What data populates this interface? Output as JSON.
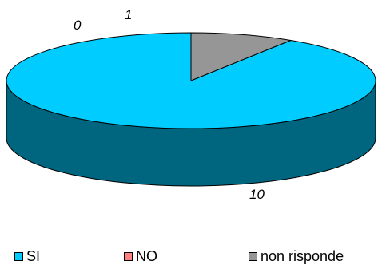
{
  "chart_data": {
    "type": "pie",
    "three_d": true,
    "categories": [
      "SI",
      "NO",
      "non risponde"
    ],
    "values": [
      10,
      0,
      1
    ],
    "data_labels": [
      "10",
      "0",
      "1"
    ],
    "title": "",
    "legend_position": "bottom",
    "colors": {
      "SI": "#00ccff",
      "SI_side": "#006680",
      "NO": "#ff8080",
      "non risponde": "#969696",
      "non risponde_side": "#4b4b4b",
      "outline": "#000000"
    }
  },
  "legend": {
    "items": [
      {
        "label": "SI",
        "color": "#00ccff"
      },
      {
        "label": "NO",
        "color": "#ff8080"
      },
      {
        "label": "non risponde",
        "color": "#969696"
      }
    ]
  }
}
